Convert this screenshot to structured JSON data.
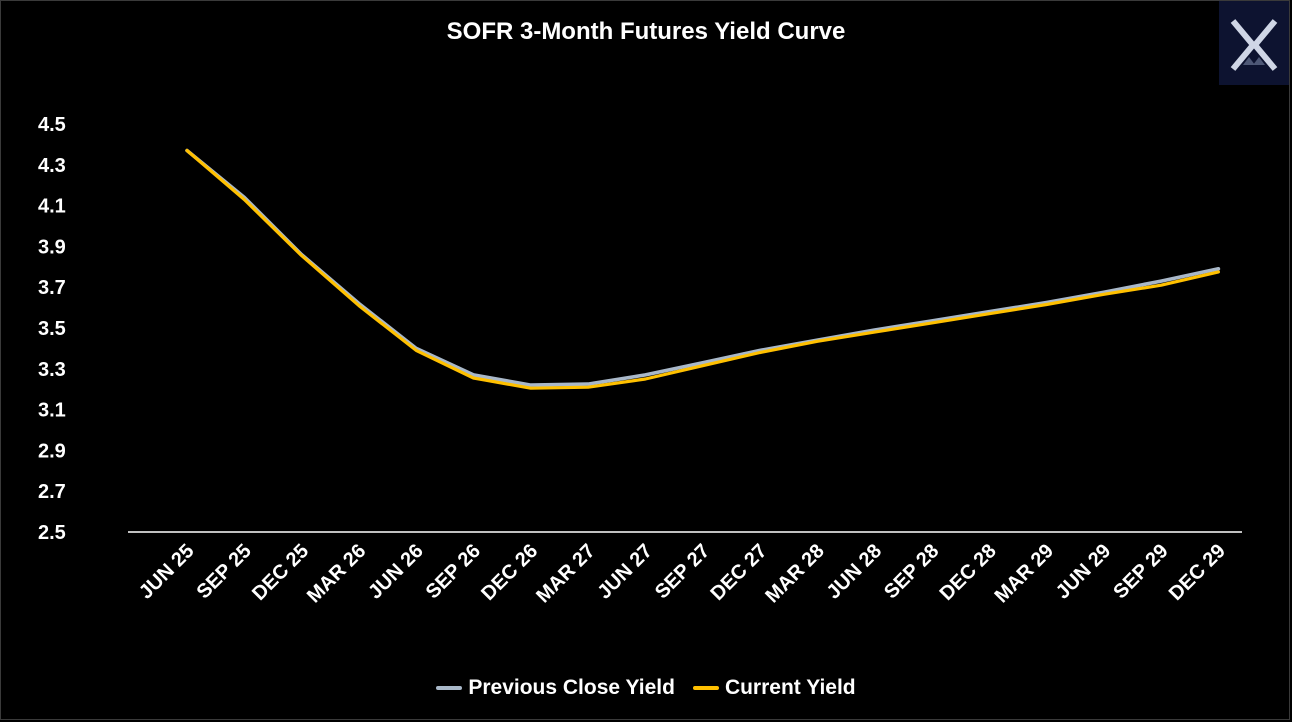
{
  "chart_data": {
    "type": "line",
    "title": "SOFR 3-Month Futures Yield Curve",
    "categories": [
      "JUN 25",
      "SEP 25",
      "DEC 25",
      "MAR 26",
      "JUN 26",
      "SEP 26",
      "DEC 26",
      "MAR 27",
      "JUN 27",
      "SEP 27",
      "DEC 27",
      "MAR 28",
      "JUN 28",
      "SEP 28",
      "DEC 28",
      "MAR 29",
      "JUN 29",
      "SEP 29",
      "DEC 29"
    ],
    "series": [
      {
        "name": "Previous Close Yield",
        "color": "#a9b8c9",
        "values": [
          4.37,
          4.14,
          3.86,
          3.62,
          3.4,
          3.27,
          3.22,
          3.225,
          3.27,
          3.33,
          3.39,
          3.44,
          3.49,
          3.535,
          3.58,
          3.625,
          3.675,
          3.73,
          3.79
        ]
      },
      {
        "name": "Current Yield",
        "color": "#ffc000",
        "values": [
          4.37,
          4.13,
          3.855,
          3.61,
          3.39,
          3.255,
          3.205,
          3.21,
          3.25,
          3.315,
          3.38,
          3.435,
          3.48,
          3.525,
          3.57,
          3.615,
          3.665,
          3.71,
          3.775
        ]
      }
    ],
    "y_ticks": [
      "4.5",
      "4.3",
      "4.1",
      "3.9",
      "3.7",
      "3.5",
      "3.3",
      "3.1",
      "2.9",
      "2.7",
      "2.5"
    ],
    "ylim": [
      2.5,
      4.5
    ],
    "grid": false,
    "legend_position": "bottom"
  },
  "logo": {
    "icon": "x-logo-icon",
    "bg_color": "#0d1330"
  }
}
